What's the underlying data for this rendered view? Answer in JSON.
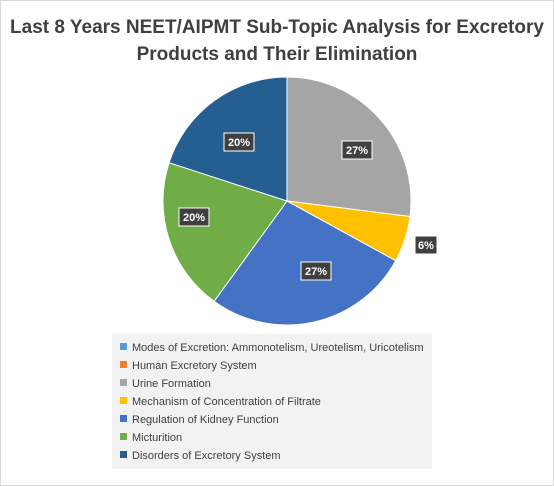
{
  "chart_data": {
    "type": "pie",
    "title": "Last 8 Years NEET/AIPMT Sub-Topic Analysis for Excretory Products and Their Elimination",
    "categories": [
      "Modes of Excretion: Ammonotelism, Ureotelism, Uricotelism",
      "Human Excretory System",
      "Urine Formation",
      "Mechanism of Concentration of Filtrate",
      "Regulation of Kidney Function",
      "Micturition",
      "Disorders of Excretory System"
    ],
    "values": [
      0,
      0,
      27,
      6,
      27,
      20,
      20
    ],
    "labels": [
      "",
      "",
      "27%",
      "6%",
      "27%",
      "20%",
      "20%"
    ],
    "colors": [
      "#5b9bd5",
      "#ed7d31",
      "#a5a5a5",
      "#ffc000",
      "#4472c4",
      "#70ad47",
      "#255e91"
    ],
    "legend_position": "bottom"
  }
}
